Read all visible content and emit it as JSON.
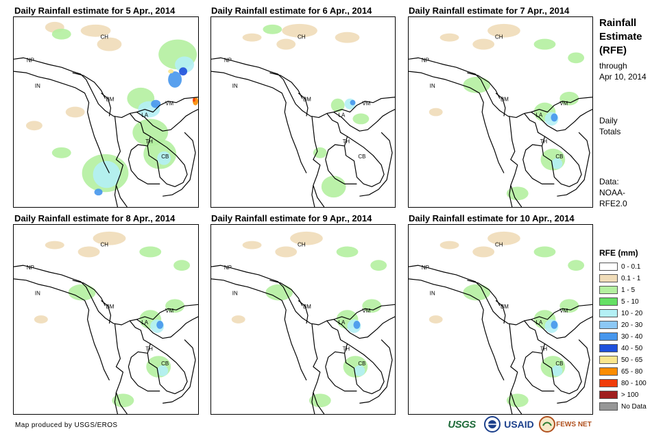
{
  "panels": [
    {
      "title": "Daily Rainfall estimate for 5 Apr., 2014",
      "intensity": "high"
    },
    {
      "title": "Daily Rainfall estimate for 6 Apr., 2014",
      "intensity": "low"
    },
    {
      "title": "Daily Rainfall estimate for 7 Apr., 2014",
      "intensity": "medium"
    },
    {
      "title": "Daily Rainfall estimate for 8 Apr., 2014",
      "intensity": "medium"
    },
    {
      "title": "Daily Rainfall estimate for 9 Apr., 2014",
      "intensity": "medium"
    },
    {
      "title": "Daily Rainfall estimate for 10 Apr., 2014",
      "intensity": "medium"
    }
  ],
  "country_labels": {
    "ch": "CH",
    "np": "NP",
    "in": "IN",
    "bm": "BM",
    "la": "LA",
    "vm": "VM",
    "th": "TH",
    "cb": "CB"
  },
  "sidebar": {
    "title_line1": "Rainfall",
    "title_line2": "Estimate",
    "title_line3": "(RFE)",
    "through": "through",
    "through_date": "Apr 10, 2014",
    "daily": "Daily",
    "totals": "Totals",
    "data_label": "Data:",
    "data_source_1": "NOAA-",
    "data_source_2": "RFE2.0"
  },
  "legend": {
    "title": "RFE (mm)",
    "items": [
      {
        "label": "0 - 0.1",
        "color": "#ffffff"
      },
      {
        "label": "0.1 - 1",
        "color": "#f0dcb8"
      },
      {
        "label": "1 - 5",
        "color": "#b4f0a0"
      },
      {
        "label": "5 - 10",
        "color": "#64e064"
      },
      {
        "label": "10 - 20",
        "color": "#b4f0f5"
      },
      {
        "label": "20 - 30",
        "color": "#8cc8f5"
      },
      {
        "label": "30 - 40",
        "color": "#4696ec"
      },
      {
        "label": "40 - 50",
        "color": "#1e50dc"
      },
      {
        "label": "50 - 65",
        "color": "#fae68c"
      },
      {
        "label": "65 - 80",
        "color": "#fa8c00"
      },
      {
        "label": "80 - 100",
        "color": "#f03c0a"
      },
      {
        "label": "> 100",
        "color": "#a01e1e"
      },
      {
        "label": "No Data",
        "color": "#969696"
      }
    ]
  },
  "footer": {
    "credit": "Map produced by USGS/EROS",
    "logo_usgs": "USGS",
    "logo_usaid": "USAID",
    "logo_fewsnet": "FEWS NET"
  }
}
